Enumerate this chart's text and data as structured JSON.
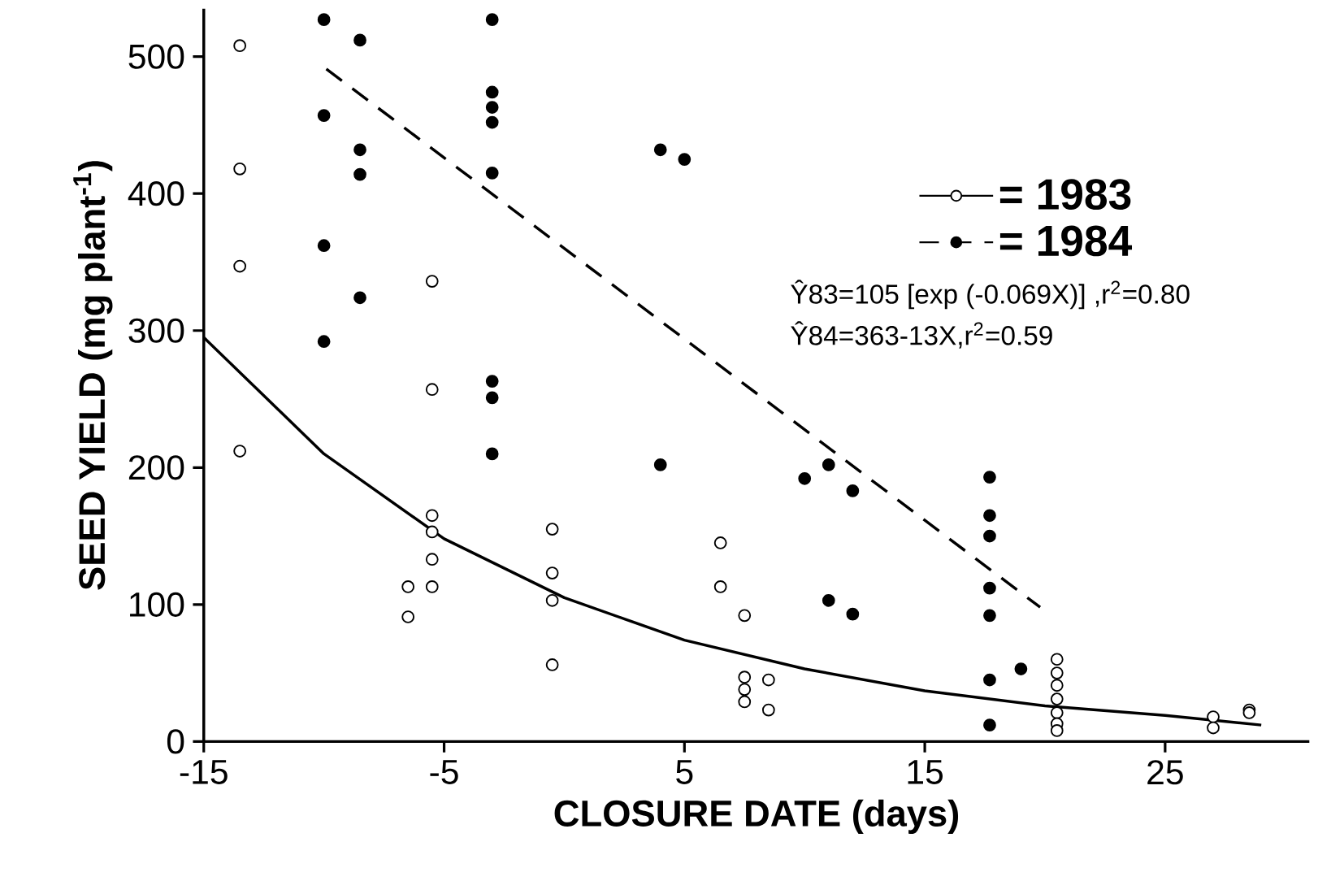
{
  "chart_data": {
    "type": "scatter",
    "xlabel": "CLOSURE DATE (days)",
    "ylabel": "SEED YIELD (mg plant$^{-1}$)",
    "xlim": [
      -15,
      31
    ],
    "ylim": [
      0,
      535
    ],
    "xticks": [
      -15,
      -5,
      5,
      15,
      25
    ],
    "yticks": [
      0,
      100,
      200,
      300,
      400,
      500
    ],
    "grid": false,
    "legend": "top right",
    "marker": "circle",
    "annotations": [
      "Ŷ83=105 [exp (-0.069X)] ,r$^{2}$=0.80",
      "Ŷ84=363-13X,r$^{2}$=0.59"
    ],
    "series": [
      {
        "name": "= 1983",
        "color": "#000000",
        "line_style": "solid",
        "x": [
          -13.5,
          -13.5,
          -13.5,
          -13.5,
          -5.5,
          -5.5,
          -5.5,
          -5.5,
          -5.5,
          -5.5,
          -6.5,
          -6.5,
          -0.5,
          -0.5,
          -0.5,
          -0.5,
          6.5,
          6.5,
          7.5,
          7.5,
          7.5,
          7.5,
          8.5,
          8.5,
          20.5,
          20.5,
          20.5,
          20.5,
          20.5,
          20.5,
          20.5,
          27,
          27,
          28.5,
          28.5
        ],
        "values": [
          508,
          418,
          347,
          212,
          336,
          257,
          165,
          153,
          133,
          113,
          113,
          91,
          155,
          123,
          103,
          56,
          145,
          113,
          92,
          47,
          38,
          29,
          45,
          23,
          60,
          50,
          41,
          31,
          21,
          13,
          8,
          18,
          10,
          23,
          21
        ]
      },
      {
        "name": "= 1984",
        "color": "#000000",
        "line_style": "dashed",
        "x": [
          -10,
          -10,
          -10,
          -10,
          -8.5,
          -8.5,
          -8.5,
          -8.5,
          -3,
          -3,
          -3,
          -3,
          -3,
          -3,
          -3,
          -3,
          4,
          4,
          5,
          10,
          11,
          11,
          12,
          12,
          17.7,
          17.7,
          17.7,
          17.7,
          17.7,
          17.7,
          17.7,
          19
        ],
        "values": [
          527,
          457,
          362,
          292,
          512,
          432,
          414,
          324,
          527,
          474,
          463,
          452,
          415,
          263,
          251,
          210,
          432,
          202,
          425,
          192,
          202,
          103,
          183,
          93,
          193,
          165,
          150,
          112,
          92,
          45,
          12,
          53
        ]
      },
      {
        "color": "#000000",
        "type": "line",
        "marker": "none",
        "line_style": "solid",
        "x": [
          -15,
          -10,
          -5,
          0,
          5,
          10,
          15,
          20,
          25,
          29
        ],
        "values": [
          295,
          210,
          148,
          105,
          74,
          53,
          37,
          26,
          19,
          12
        ]
      },
      {
        "color": "#000000",
        "type": "line",
        "marker": "none",
        "line_style": "dashed",
        "x": [
          -9.9,
          19.8
        ],
        "values": [
          491,
          98
        ]
      }
    ]
  }
}
